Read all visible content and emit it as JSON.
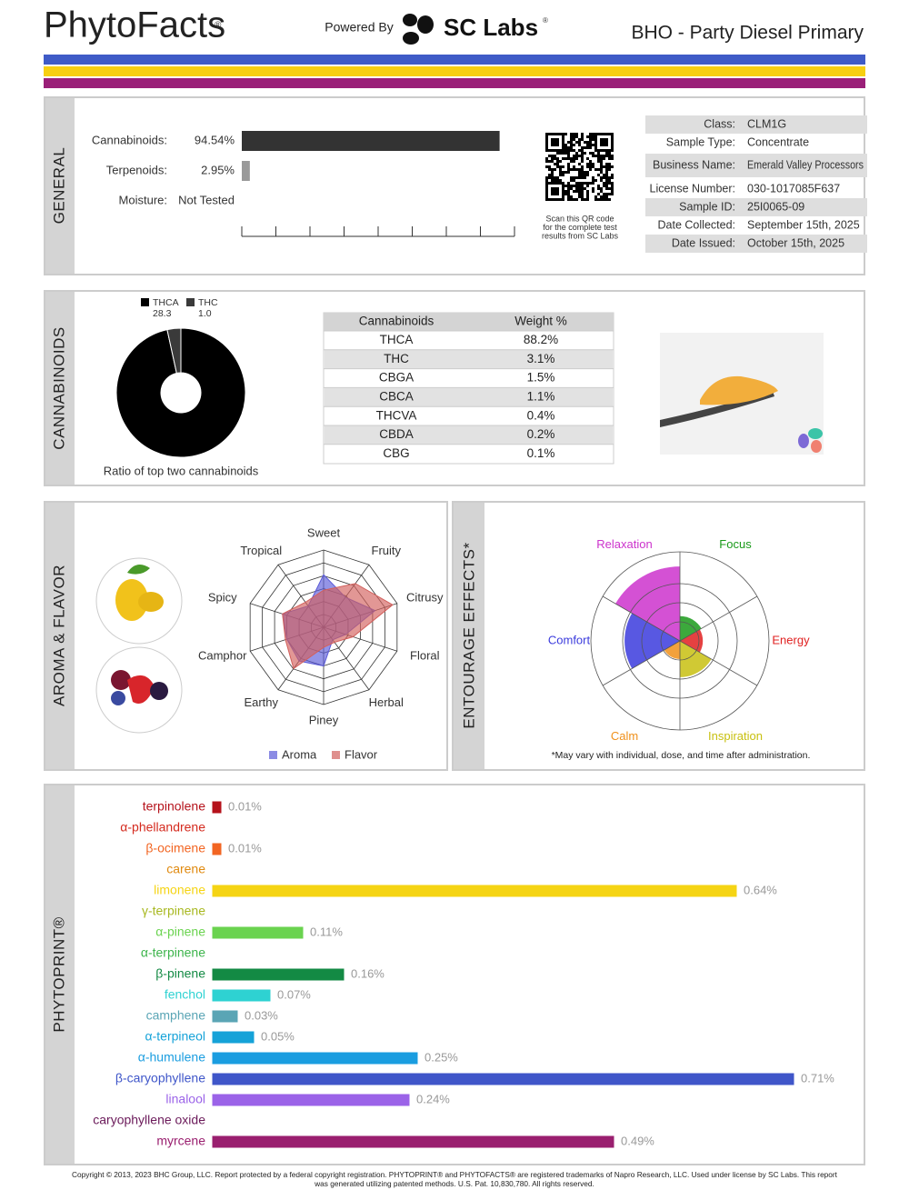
{
  "header": {
    "brand": "PhytoFacts",
    "brand_mark": "®",
    "powered_by": "Powered By",
    "lab": "SC Labs",
    "lab_mark": "®",
    "product": "BHO - Party Diesel Primary"
  },
  "general": {
    "label": "GENERAL",
    "xlim": [
      0,
      100
    ],
    "bars": [
      {
        "label": "Cannabinoids:",
        "value": 94.54,
        "value_label": "94.54%",
        "color": "#333333"
      },
      {
        "label": "Terpenoids:",
        "value": 2.95,
        "value_label": "2.95%",
        "color": "#999999"
      },
      {
        "label": "Moisture:",
        "value_label": "Not Tested"
      }
    ],
    "qr_caption": [
      "Scan this QR code",
      "for the complete test",
      "results from SC Labs"
    ],
    "info": [
      [
        "Class:",
        "CLM1G"
      ],
      [
        "Sample Type:",
        "Concentrate"
      ],
      [
        "Business Name:",
        "Emerald Valley Processors"
      ],
      [
        "License Number:",
        "030-1017085F637"
      ],
      [
        "Sample ID:",
        "25I0065-09"
      ],
      [
        "Date Collected:",
        "September 15th, 2025"
      ],
      [
        "Date Issued:",
        "October 15th, 2025"
      ]
    ]
  },
  "cannabinoids": {
    "label": "CANNABINOIDS",
    "chart_data": {
      "type": "pie",
      "categories": [
        "THCA",
        "THC"
      ],
      "values": [
        28.3,
        1.0
      ],
      "value_labels": [
        "28.3",
        "1.0"
      ],
      "colors": [
        "#000000",
        "#3a3a3a"
      ],
      "caption": "Ratio of top two cannabinoids"
    },
    "table": {
      "header": [
        "Cannabinoids",
        "Weight %"
      ],
      "rows": [
        [
          "THCA",
          "88.2%"
        ],
        [
          "THC",
          "3.1%"
        ],
        [
          "CBGA",
          "1.5%"
        ],
        [
          "CBCA",
          "1.1%"
        ],
        [
          "THCVA",
          "0.4%"
        ],
        [
          "CBDA",
          "0.2%"
        ],
        [
          "CBG",
          "0.1%"
        ]
      ]
    }
  },
  "aroma": {
    "label": "AROMA & FLAVOR",
    "chart_data": {
      "type": "radar",
      "categories": [
        "Sweet",
        "Fruity",
        "Citrusy",
        "Floral",
        "Herbal",
        "Piney",
        "Earthy",
        "Camphor",
        "Spicy",
        "Tropical"
      ],
      "rlim": [
        0,
        5
      ],
      "series": [
        {
          "name": "Aroma",
          "color": "#5a5ad8",
          "values": [
            3.4,
            2.4,
            3.5,
            1.5,
            1.0,
            2.5,
            2.7,
            2.5,
            2.8,
            1.7
          ]
        },
        {
          "name": "Flavor",
          "color": "#d2605c",
          "values": [
            2.4,
            3.5,
            4.7,
            2.0,
            1.2,
            1.3,
            3.3,
            2.6,
            2.8,
            2.0
          ]
        }
      ]
    }
  },
  "entourage": {
    "label": "ENTOURAGE EFFECTS*",
    "note": "*May vary with individual, dose, and time after administration.",
    "chart_data": {
      "type": "polar",
      "categories": [
        "Focus",
        "Energy",
        "Inspiration",
        "Calm",
        "Comfort",
        "Relaxation"
      ],
      "rlim": [
        0,
        4
      ],
      "values": [
        1.3,
        1.2,
        1.9,
        0.95,
        2.9,
        3.9
      ],
      "colors": [
        "#1a9a1a",
        "#e02020",
        "#c8c010",
        "#f0901a",
        "#3b3bdd",
        "#cc33cc"
      ]
    }
  },
  "phytoprint": {
    "label": "PHYTOPRINT®",
    "chart_data": {
      "type": "hbar",
      "xlim": [
        0,
        0.8
      ],
      "categories": [
        "terpinolene",
        "α-phellandrene",
        "β-ocimene",
        "carene",
        "limonene",
        "γ-terpinene",
        "α-pinene",
        "α-terpinene",
        "β-pinene",
        "fenchol",
        "camphene",
        "α-terpineol",
        "α-humulene",
        "β-caryophyllene",
        "linalool",
        "caryophyllene oxide",
        "myrcene"
      ],
      "values": [
        0.01,
        0,
        0.01,
        0,
        0.64,
        0,
        0.11,
        0,
        0.16,
        0.07,
        0.03,
        0.05,
        0.25,
        0.71,
        0.24,
        0,
        0.49
      ],
      "value_labels": [
        "0.01%",
        null,
        "0.01%",
        null,
        "0.64%",
        null,
        "0.11%",
        null,
        "0.16%",
        "0.07%",
        "0.03%",
        "0.05%",
        "0.25%",
        "0.71%",
        "0.24%",
        null,
        "0.49%"
      ],
      "colors": [
        "#b5121b",
        "#d42a1e",
        "#f26522",
        "#e08a10",
        "#f5d414",
        "#a8b820",
        "#6ad34f",
        "#3cb44b",
        "#138a44",
        "#2ed2d2",
        "#5aa5b5",
        "#15a2d8",
        "#1a9de0",
        "#3f56c9",
        "#9b63e8",
        "#6b1a5a",
        "#9a1f6f"
      ]
    }
  },
  "footer": [
    "Copyright © 2013, 2023 BHC Group, LLC. Report protected by a federal copyright registration. PHYTOPRINT® and PHYTOFACTS® are registered trademarks of Napro Research, LLC. Used under license by SC Labs. This report",
    "was generated utilizing patented methods. U.S. Pat. 10,830,780. All rights reserved."
  ]
}
